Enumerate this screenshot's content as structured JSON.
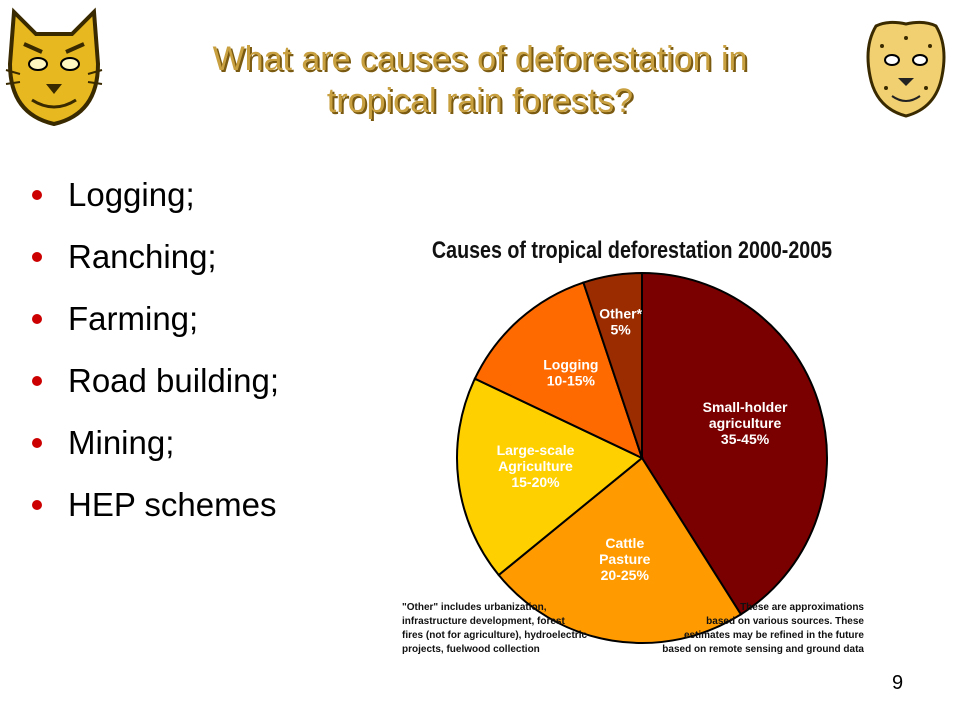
{
  "slide": {
    "title_line1": "What are causes of deforestation in",
    "title_line2": "tropical rain forests?",
    "page_number": "9"
  },
  "bullets": [
    "Logging;",
    "Ranching;",
    "Farming;",
    "Road building;",
    "Mining;",
    "HEP schemes"
  ],
  "logos": {
    "left": "bobcat-mascot-icon",
    "right": "cheetah-mascot-icon"
  },
  "colors": {
    "title": "#c8a040",
    "bullet": "#cc0000"
  },
  "chart_data": {
    "type": "pie",
    "title": "Causes of tropical deforestation 2000-2005",
    "slices": [
      {
        "label": "Small-holder agriculture",
        "range": "35-45%",
        "value": 40,
        "color": "#7a0000"
      },
      {
        "label": "Cattle Pasture",
        "range": "20-25%",
        "value": 22.5,
        "color": "#ff9a00"
      },
      {
        "label": "Large-scale Agriculture",
        "range": "15-20%",
        "value": 17.5,
        "color": "#ffd000"
      },
      {
        "label": "Logging",
        "range": "10-15%",
        "value": 12.5,
        "color": "#ff6a00"
      },
      {
        "label": "Other*",
        "range": "5%",
        "value": 5,
        "color": "#9a2c00"
      }
    ],
    "footnote_left": [
      "\"Other\" includes urbanization,",
      "infrastructure development, forest",
      "fires (not for agriculture), hydroelectric",
      "projects, fuelwood collection"
    ],
    "footnote_right": [
      "These are approximations",
      "based on various sources. These",
      "estimates may be refined in the future",
      "based on remote sensing and ground data"
    ]
  }
}
